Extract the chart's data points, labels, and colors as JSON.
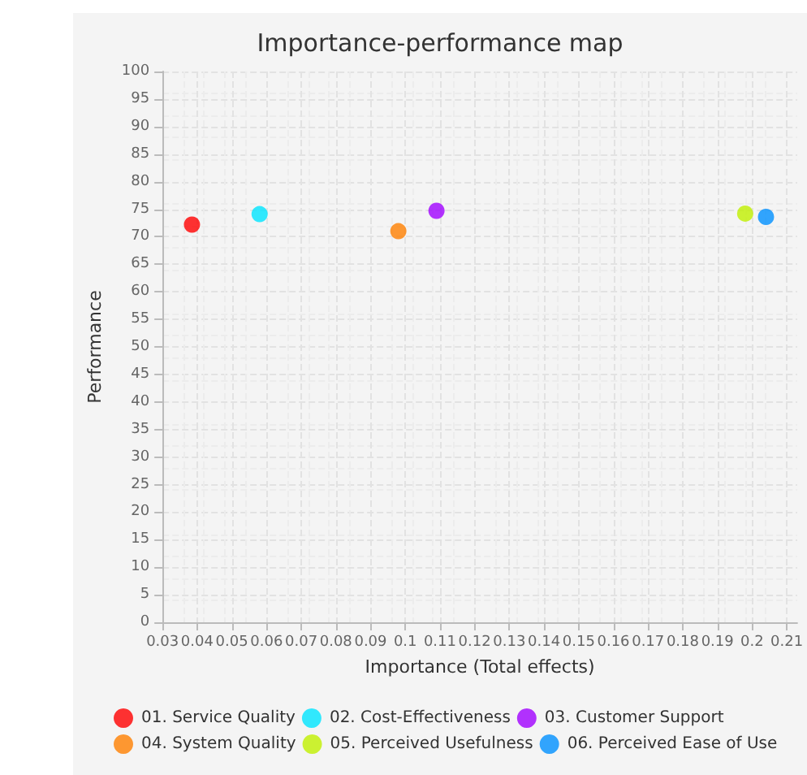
{
  "chart_data": {
    "type": "scatter",
    "title": "Importance-performance map",
    "xlabel": "Importance (Total effects)",
    "ylabel": "Performance",
    "series": [
      {
        "name": "01. Service Quality",
        "color": "#ff0000",
        "x": [
          0.0385
        ],
        "values": [
          72.2
        ]
      },
      {
        "name": "02. Cost-Effectiveness",
        "color": "#00e5ff",
        "x": [
          0.058
        ],
        "values": [
          74.1
        ]
      },
      {
        "name": "03. Customer Support",
        "color": "#a000ff",
        "x": [
          0.109
        ],
        "values": [
          74.7
        ]
      },
      {
        "name": "04. System Quality",
        "color": "#ff7f00",
        "x": [
          0.098
        ],
        "values": [
          71.0
        ]
      },
      {
        "name": "05. Perceived Usefulness",
        "color": "#c0f000",
        "x": [
          0.198
        ],
        "values": [
          74.2
        ]
      },
      {
        "name": "06. Perceived Ease of Use",
        "color": "#0090ff",
        "x": [
          0.204
        ],
        "values": [
          73.6
        ]
      }
    ],
    "xlim": [
      0.03,
      0.213
    ],
    "xticks": [
      0.03,
      0.04,
      0.05,
      0.06,
      0.07,
      0.08,
      0.09,
      0.1,
      0.11,
      0.12,
      0.13,
      0.14,
      0.15,
      0.16,
      0.17,
      0.18,
      0.19,
      0.2,
      0.21
    ],
    "ylim": [
      0,
      100
    ],
    "yticks": [
      0,
      5,
      10,
      15,
      20,
      25,
      30,
      35,
      40,
      45,
      50,
      55,
      60,
      65,
      70,
      75,
      80,
      85,
      90,
      95,
      100
    ],
    "grid": true,
    "legend": "bottom",
    "marker": "circle"
  }
}
